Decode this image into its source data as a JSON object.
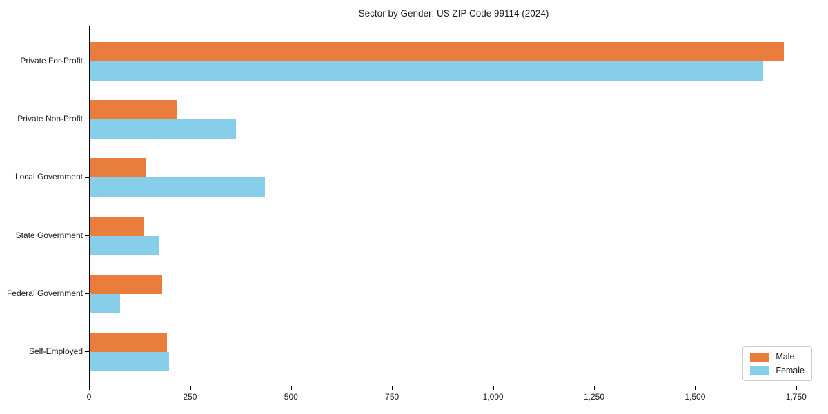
{
  "title": "Sector by Gender: US ZIP Code 99114 (2024)",
  "accent_colors": {
    "male": "#e87d3c",
    "female": "#87ceeb",
    "axis": "#000000",
    "legend_border": "#cccccc"
  },
  "chart_data": {
    "type": "bar",
    "orientation": "horizontal",
    "title": "Sector by Gender: US ZIP Code 99114 (2024)",
    "categories": [
      "Private For-Profit",
      "Private Non-Profit",
      "Local Government",
      "State Government",
      "Federal Government",
      "Self-Employed"
    ],
    "series": [
      {
        "name": "Male",
        "color": "#e87d3c",
        "values": [
          1717,
          217,
          138,
          135,
          179,
          191
        ]
      },
      {
        "name": "Female",
        "color": "#87ceeb",
        "values": [
          1667,
          362,
          433,
          170,
          75,
          197
        ]
      }
    ],
    "xlabel": "",
    "ylabel": "",
    "xlim": [
      0,
      1805
    ],
    "x_ticks": [
      {
        "value": 0,
        "label": "0"
      },
      {
        "value": 250,
        "label": "250"
      },
      {
        "value": 500,
        "label": "500"
      },
      {
        "value": 750,
        "label": "750"
      },
      {
        "value": 1000,
        "label": "1,000"
      },
      {
        "value": 1250,
        "label": "1,250"
      },
      {
        "value": 1500,
        "label": "1,500"
      },
      {
        "value": 1750,
        "label": "1,750"
      }
    ],
    "grid": false,
    "legend_position": "lower right",
    "legend_entries": [
      "Male",
      "Female"
    ]
  }
}
